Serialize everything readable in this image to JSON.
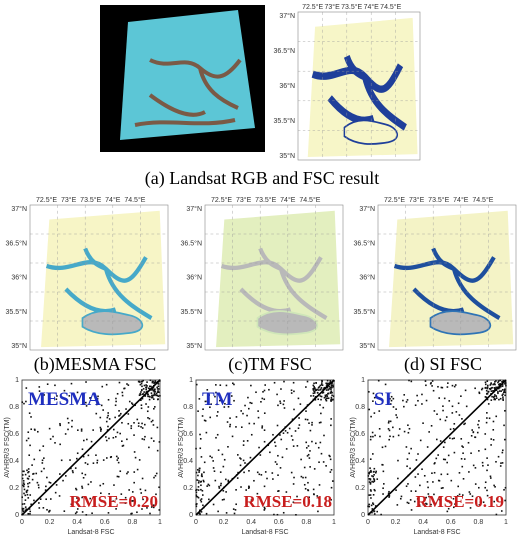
{
  "panel_a": {
    "caption": "(a)    Landsat RGB and FSC result",
    "map": {
      "lon_labels": [
        "72.5°E",
        "73°E",
        "73.5°E",
        "74°E",
        "74.5°E"
      ],
      "lat_labels": [
        "37°N",
        "36.5°N",
        "36°N",
        "35.5°N",
        "35°N"
      ]
    }
  },
  "maps": [
    {
      "caption": "(b)MESMA FSC",
      "lon_labels": [
        "72.5°E",
        "73°E",
        "73.5°E",
        "74°E",
        "74.5°E"
      ],
      "lat_labels": [
        "37°N",
        "36.5°N",
        "36°N",
        "35.5°N",
        "35°N"
      ]
    },
    {
      "caption": "(c)TM FSC",
      "lon_labels": [
        "72.5°E",
        "73°E",
        "73.5°E",
        "74°E",
        "74.5°E"
      ],
      "lat_labels": [
        "37°N",
        "36.5°N",
        "36°N",
        "35.5°N",
        "35°N"
      ]
    },
    {
      "caption": "(d) SI FSC",
      "lon_labels": [
        "72.5°E",
        "73°E",
        "73.5°E",
        "74°E",
        "74.5°E"
      ],
      "lat_labels": [
        "37°N",
        "36.5°N",
        "36°N",
        "35.5°N",
        "35°N"
      ]
    }
  ],
  "scatter": [
    {
      "label": "MESMA",
      "rmse": "RMSE=0.20",
      "xlabel": "Landsat-8 FSC",
      "ylabel": "AVHRR/3 FSC(TM)",
      "xticks": [
        "0",
        "0.2",
        "0.4",
        "0.6",
        "0.8",
        "1"
      ],
      "yticks": [
        "0",
        "0.2",
        "0.4",
        "0.6",
        "0.8",
        "1"
      ]
    },
    {
      "label": "TM",
      "rmse": "RMSE=0.18",
      "xlabel": "Landsat-8 FSC",
      "ylabel": "AVHRR/3 FSC(TM)",
      "xticks": [
        "0",
        "0.2",
        "0.4",
        "0.6",
        "0.8",
        "1"
      ],
      "yticks": [
        "0",
        "0.2",
        "0.4",
        "0.6",
        "0.8",
        "1"
      ]
    },
    {
      "label": "SI",
      "rmse": "RMSE=0.19",
      "xlabel": "Landsat-8 FSC",
      "ylabel": "AVHRR/3 FSC(TM)",
      "xticks": [
        "0",
        "0.2",
        "0.4",
        "0.6",
        "0.8",
        "1"
      ],
      "yticks": [
        "0",
        "0.2",
        "0.4",
        "0.6",
        "0.8",
        "1"
      ]
    }
  ]
}
